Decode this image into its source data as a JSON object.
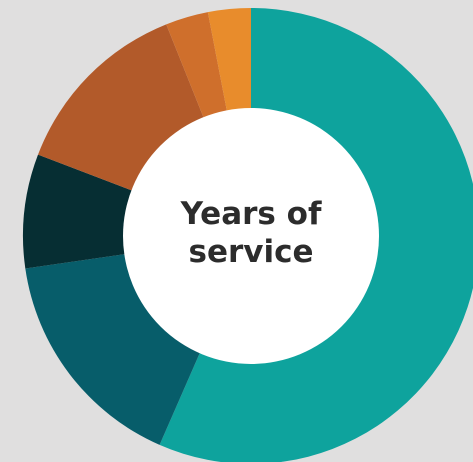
{
  "chart_data": {
    "type": "pie",
    "donut": true,
    "title_lines": [
      "Years of",
      "service"
    ],
    "start_angle_deg": 0,
    "direction": "clockwise",
    "slices": [
      {
        "value": 56.0,
        "color": "#0ea39d"
      },
      {
        "value": 16.0,
        "color": "#075d6a"
      },
      {
        "value": 8.0,
        "color": "#062e33"
      },
      {
        "value": 13.0,
        "color": "#b25a2a"
      },
      {
        "value": 3.0,
        "color": "#cf6f2c"
      },
      {
        "value": 3.0,
        "color": "#e88c2c"
      }
    ]
  }
}
